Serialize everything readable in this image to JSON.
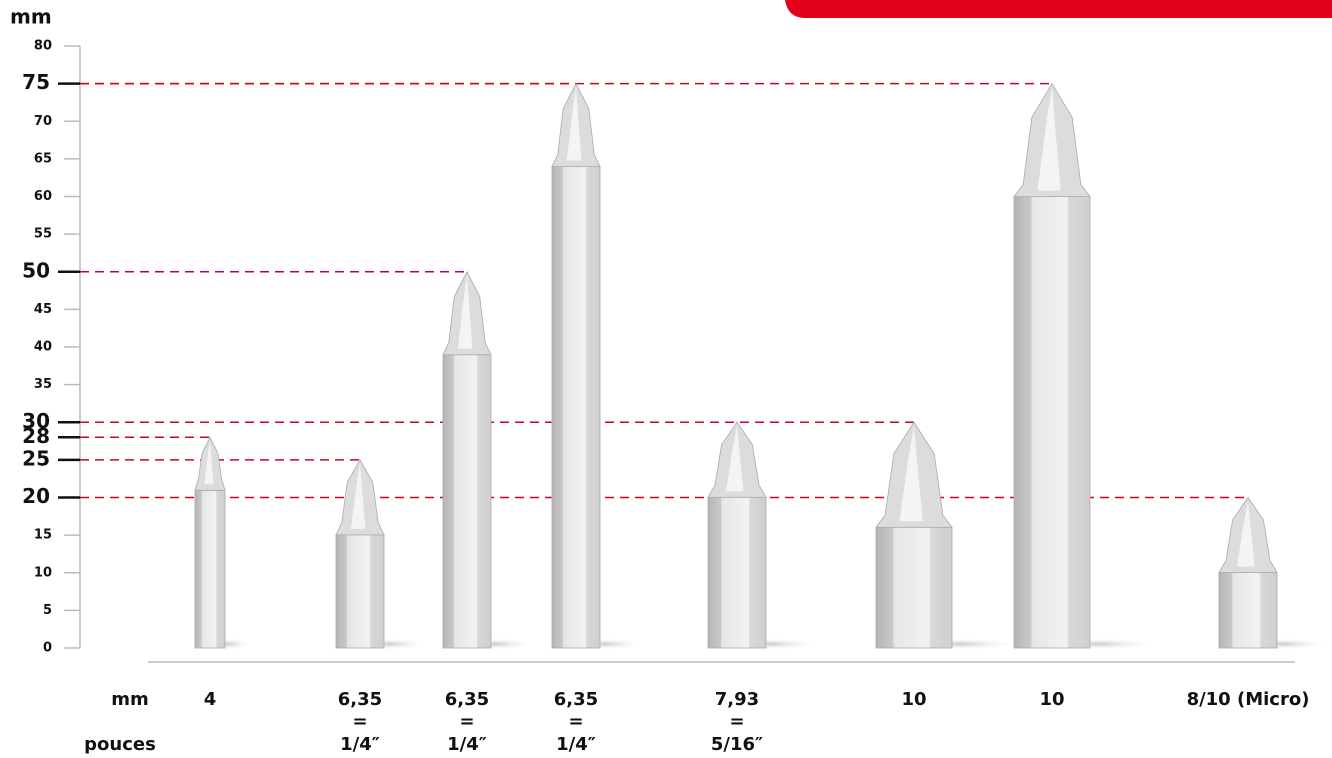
{
  "chart_data": {
    "type": "bar",
    "y_label": "mm",
    "ylim": [
      0,
      80
    ],
    "yticks": [
      0,
      5,
      10,
      15,
      20,
      25,
      28,
      30,
      35,
      40,
      45,
      50,
      55,
      60,
      65,
      70,
      75,
      80
    ],
    "values": [
      28,
      25,
      50,
      75,
      30,
      30,
      75,
      20
    ],
    "categories": [
      "4",
      "6,35",
      "6,35",
      "6,35",
      "7,93",
      "10",
      "10",
      "8/10 (Micro)"
    ],
    "inch_labels": [
      null,
      "1/4″",
      "1/4″",
      "1/4″",
      "5/16″",
      null,
      null,
      null
    ],
    "equals": "=",
    "row_labels": [
      "mm",
      "pouces"
    ],
    "color": "#e4e4e4",
    "guide_color": "#d0021b"
  }
}
